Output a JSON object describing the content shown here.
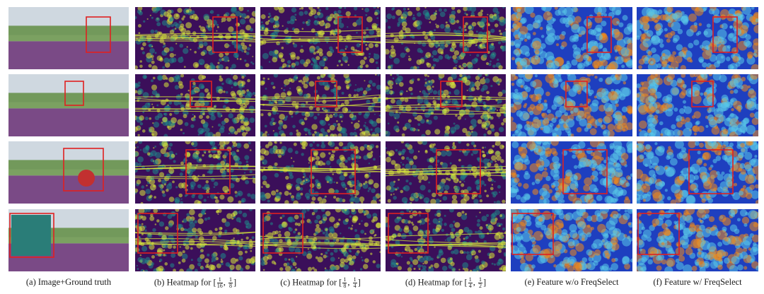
{
  "figure": {
    "columns": [
      {
        "id": "a",
        "type": "image-gt",
        "caption": "(a) Image+Ground truth"
      },
      {
        "id": "b",
        "type": "heatmap",
        "caption_prefix": "(b) Heatmap for",
        "frac1": [
          "1",
          "16"
        ],
        "frac2": [
          "1",
          "8"
        ]
      },
      {
        "id": "c",
        "type": "heatmap",
        "caption_prefix": "(c) Heatmap for",
        "frac1": [
          "1",
          "8"
        ],
        "frac2": [
          "1",
          "4"
        ]
      },
      {
        "id": "d",
        "type": "heatmap",
        "caption_prefix": "(d) Heatmap for",
        "frac1": [
          "1",
          "4"
        ],
        "frac2": [
          "1",
          "2"
        ]
      },
      {
        "id": "e",
        "type": "feature",
        "caption": "(e) Feature w/o FreqSelect"
      },
      {
        "id": "f",
        "type": "feature",
        "caption": "(f) Feature w/ FreqSelect"
      }
    ],
    "rows": 4,
    "colors": {
      "highlight_box": "#e02020",
      "heatmap_base": "#3b0f5a",
      "heatmap_mid": "#1f8a8a",
      "heatmap_hot": "#d8e83a",
      "feature_base": "#1e3fbf",
      "feature_mid": "#59c8e8",
      "feature_hot": "#f08a1a",
      "road": "#7a4a86",
      "sky": "#cfd8e0",
      "vegetation": "#5a8a3a"
    }
  }
}
